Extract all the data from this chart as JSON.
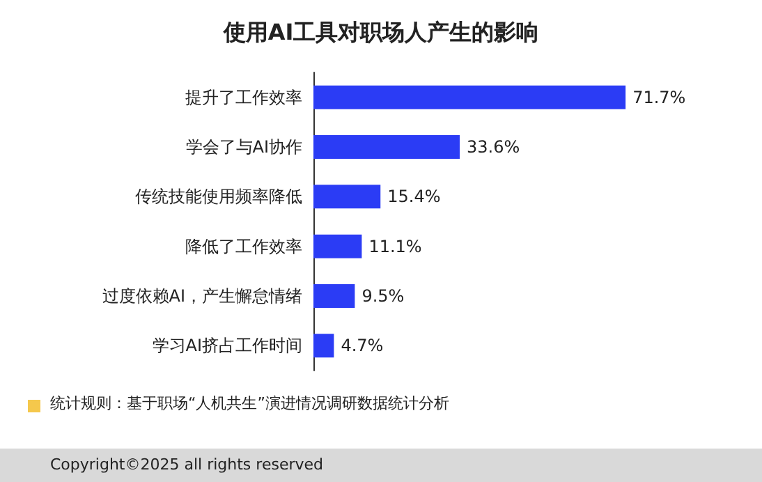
{
  "chart_data": {
    "type": "bar",
    "orientation": "horizontal",
    "title": "使用AI工具对职场人产生的影响",
    "categories": [
      "提升了工作效率",
      "学会了与AI协作",
      "传统技能使用频率降低",
      "降低了工作效率",
      "过度依赖AI，产生懈怠情绪",
      "学习AI挤占工作时间"
    ],
    "values": [
      71.7,
      33.6,
      15.4,
      11.1,
      9.5,
      4.7
    ],
    "value_labels": [
      "71.7%",
      "33.6%",
      "15.4%",
      "11.1%",
      "9.5%",
      "4.7%"
    ],
    "color": "#2b3cf5",
    "annotations": [
      "统计规则：基于职场“人机共生”演进情况调研数据统计分析",
      "Copyright©2025 all rights reserved"
    ]
  }
}
